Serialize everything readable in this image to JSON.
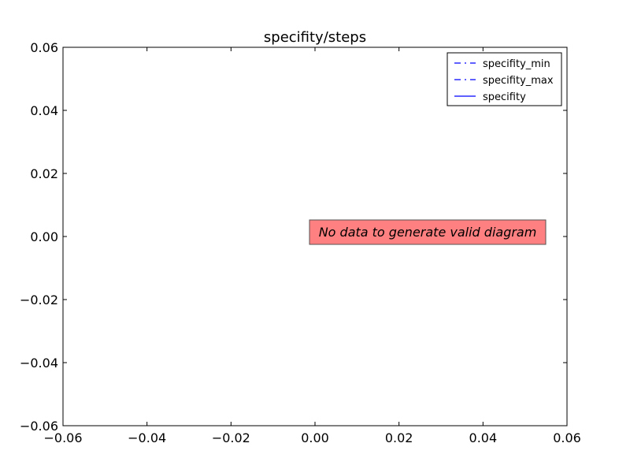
{
  "chart_data": {
    "type": "line",
    "title": "specifity/steps",
    "xlabel": "",
    "ylabel": "",
    "xlim": [
      -0.06,
      0.06
    ],
    "ylim": [
      -0.06,
      0.06
    ],
    "xticks": [
      -0.06,
      -0.04,
      -0.02,
      0.0,
      0.02,
      0.04,
      0.06
    ],
    "yticks": [
      -0.06,
      -0.04,
      -0.02,
      0.0,
      0.02,
      0.04,
      0.06
    ],
    "xtick_labels": [
      "−0.06",
      "−0.04",
      "−0.02",
      "0.00",
      "0.02",
      "0.04",
      "0.06"
    ],
    "ytick_labels": [
      "−0.06",
      "−0.04",
      "−0.02",
      "0.00",
      "0.02",
      "0.04",
      "0.06"
    ],
    "grid": false,
    "legend_position": "top-right",
    "series": [
      {
        "name": "specifity_min",
        "linestyle": "dash-dot",
        "color": "#0000ff",
        "x": [],
        "y": []
      },
      {
        "name": "specifity_max",
        "linestyle": "dash-dot",
        "color": "#0000ff",
        "x": [],
        "y": []
      },
      {
        "name": "specifity",
        "linestyle": "solid",
        "color": "#0000ff",
        "x": [],
        "y": []
      }
    ],
    "annotation": {
      "text": "No data to generate valid diagram",
      "background_color": "#ff8080",
      "border_color": "#555555"
    }
  }
}
